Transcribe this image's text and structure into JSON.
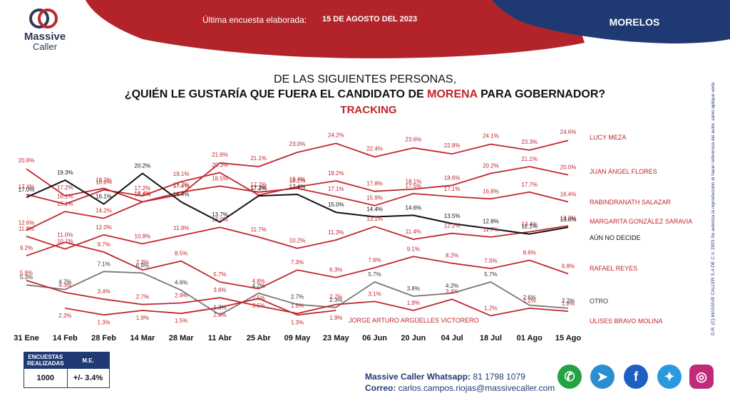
{
  "brand": {
    "name": "Massive",
    "sub": "Caller"
  },
  "header": {
    "label": "Última encuesta elaborada:",
    "date": "15 DE AGOSTO DEL 2023",
    "state": "MORELOS"
  },
  "title": {
    "line1": "DE LAS SIGUIENTES  PERSONAS,",
    "line2_pre": "¿QUIÉN LE GUSTARÍA QUE FUERA EL CANDIDATO  DE ",
    "line2_accent": "MORENA",
    "line2_post": " PARA GOBERNADOR?",
    "line3": "TRACKING"
  },
  "side_note": "D.R. (C) MASSIVE CALLER S.A DE C.V. 2023 Se autoriza la reproducción al hacer referencia del autor, salvo aplique veda electoral al contenido.",
  "survey": {
    "header_realizadas": "ENCUESTAS REALIZADAS",
    "header_me": "M.E.",
    "realizadas": "1000",
    "me": "+/- 3.4%"
  },
  "contact": {
    "whatsapp_label": "Massive Caller Whatsapp:",
    "whatsapp": "81 1798 1079",
    "email_label": "Correo:",
    "email": "carlos.campos.riojas@massivecaller.com"
  },
  "social_icons": [
    "whatsapp-icon",
    "telegram-icon",
    "facebook-icon",
    "twitter-icon",
    "instagram-icon"
  ],
  "colors": {
    "red": "#c0262c",
    "dark_red": "#8b1a1f",
    "navy": "#1f3a73",
    "black": "#111111",
    "gray": "#777777"
  },
  "chart_data": {
    "type": "line",
    "categories": [
      "31 Ene",
      "14 Feb",
      "28 Feb",
      "14 Mar",
      "28 Mar",
      "11 Abr",
      "25 Abr",
      "09 May",
      "23 May",
      "06 Jun",
      "20 Jun",
      "04 Jul",
      "18 Jul",
      "01 Ago",
      "15 Ago"
    ],
    "series": [
      {
        "name": "LUCY MEZA",
        "color": "#c0262c",
        "values": [
          20.8,
          17.2,
          18.2,
          16.4,
          17.4,
          21.6,
          21.1,
          23.0,
          24.2,
          22.4,
          23.6,
          22.8,
          24.1,
          23.3,
          24.6
        ]
      },
      {
        "name": "JUAN ÁNGEL FLORES",
        "color": "#c0262c",
        "values": [
          17.4,
          16.1,
          18.0,
          17.2,
          19.1,
          20.3,
          17.3,
          18.4,
          19.2,
          17.8,
          18.1,
          18.6,
          20.2,
          21.1,
          20.0
        ]
      },
      {
        "name": "RABINDRANATH  SALAZAR",
        "color": "#c0262c",
        "values": [
          12.6,
          15.1,
          14.2,
          16.4,
          17.7,
          18.5,
          17.7,
          18.2,
          17.1,
          15.9,
          17.5,
          17.1,
          16.8,
          17.7,
          16.4
        ]
      },
      {
        "name": "MARGARITA GONZÁLEZ SARAVIA",
        "color": "#c0262c",
        "values": [
          11.8,
          10.1,
          12.0,
          10.8,
          11.9,
          13.0,
          11.7,
          10.2,
          11.3,
          13.1,
          11.4,
          12.2,
          11.7,
          12.4,
          13.2
        ]
      },
      {
        "name": "AÚN NO DECIDE",
        "color": "#111111",
        "values": [
          17.0,
          19.3,
          16.1,
          20.2,
          16.4,
          13.7,
          17.2,
          17.4,
          15.0,
          14.4,
          14.6,
          13.5,
          12.8,
          12.1,
          13.0
        ]
      },
      {
        "name": "RAFAEL REYES",
        "color": "#c0262c",
        "values": [
          9.2,
          11.0,
          9.7,
          7.3,
          8.5,
          5.7,
          4.8,
          7.3,
          6.3,
          7.6,
          9.1,
          8.2,
          7.5,
          8.6,
          6.8
        ]
      },
      {
        "name": "OTRO",
        "color": "#777777",
        "values": [
          5.3,
          4.7,
          7.1,
          6.9,
          4.6,
          1.3,
          4.2,
          2.7,
          2.3,
          5.7,
          3.8,
          4.2,
          5.7,
          2.6,
          2.2
        ]
      },
      {
        "name": "ULISES BRAVO MOLINA",
        "color": "#c0262c",
        "values": [
          5.9,
          4.3,
          3.4,
          2.7,
          2.9,
          3.6,
          2.5,
          1.5,
          2.7,
          3.1,
          1.9,
          3.4,
          1.2,
          2.2,
          1.8
        ]
      },
      {
        "name": "JORGE ARTURO ARGÜELLES VICTORERO",
        "color": "#c0262c",
        "values": [
          null,
          2.2,
          1.3,
          1.9,
          1.5,
          2.3,
          3.5,
          1.3,
          1.9,
          null,
          null,
          null,
          null,
          null,
          null
        ]
      }
    ],
    "value_labels": [
      {
        "series": "LUCY MEZA",
        "labels": [
          "20.8%",
          "17.2%",
          "18.2%",
          "16.4%",
          "17.4%",
          "21.6%",
          "21.1%",
          "23.0%",
          "24.2%",
          "22.4%",
          "23.6%",
          "22.8%",
          "24.1%",
          "23.3%",
          "24.6%"
        ]
      },
      {
        "series": "JUAN ÁNGEL FLORES",
        "labels": [
          "17.4%",
          "16.1%",
          "18.0%",
          "17.2%",
          "19.1%",
          "20.3%",
          "17.3%",
          "18.4%",
          "19.2%",
          "17.8%",
          "18.1%",
          "18.6%",
          "20.2%",
          "21.1%",
          "20.0%"
        ]
      },
      {
        "series": "RABINDRANATH  SALAZAR",
        "labels": [
          "12.6%",
          "15.1%",
          "14.2%",
          "16.4%",
          "17.7%",
          "18.5%",
          "17.7%",
          "18.2%",
          "17.1%",
          "15.9%",
          "17.5%",
          "17.1%",
          "16.8%",
          "17.7%",
          "16.4%"
        ]
      },
      {
        "series": "MARGARITA GONZÁLEZ SARAVIA",
        "labels": [
          "11.8%",
          "10.1%",
          "12.0%",
          "10.8%",
          "11.9%",
          "13.0%",
          "11.7%",
          "10.2%",
          "11.3%",
          "13.1%",
          "11.4%",
          "12.2%",
          "11.7%",
          "12.4%",
          "13.2%"
        ]
      },
      {
        "series": "AÚN NO DECIDE",
        "labels": [
          "17.0%",
          "19.3%",
          "16.1%",
          "20.2%",
          "16.4%",
          "13.7%",
          "17.2%",
          "17.4%",
          "15.0%",
          "14.4%",
          "14.6%",
          "13.5%",
          "12.8%",
          "12.1%",
          "13.0%"
        ]
      },
      {
        "series": "RAFAEL REYES",
        "labels": [
          "9.2%",
          "11.0%",
          "9.7%",
          "7.3%",
          "8.5%",
          "5.7%",
          "4.8%",
          "7.3%",
          "6.3%",
          "7.6%",
          "9.1%",
          "8.2%",
          "7.5%",
          "8.6%",
          "6.8%"
        ]
      },
      {
        "series": "OTRO",
        "labels": [
          "5.3%",
          "4.7%",
          "7.1%",
          "6.9%",
          "4.6%",
          "1.3%",
          "4.2%",
          "2.7%",
          "2.3%",
          "5.7%",
          "3.8%",
          "4.2%",
          "5.7%",
          "2.6%",
          "2.2%"
        ]
      },
      {
        "series": "ULISES BRAVO MOLINA",
        "labels": [
          "5.9%",
          "4.3%",
          "3.4%",
          "2.7%",
          "2.9%",
          "3.6%",
          "2.5%",
          "1.5%",
          "2.7%",
          "3.1%",
          "1.9%",
          "3.4%",
          "1.2%",
          "2.2%",
          "1.8%"
        ]
      },
      {
        "series": "JORGE ARTURO ARGÜELLES VICTORERO",
        "labels": [
          "",
          "2.2%",
          "1.3%",
          "1.9%",
          "1.5%",
          "2.3%",
          "3.5%",
          "1.3%",
          "1.9%",
          "",
          "",
          "",
          "",
          "",
          ""
        ]
      }
    ],
    "ylim": [
      0,
      25
    ],
    "grid": false,
    "legend": "right"
  }
}
